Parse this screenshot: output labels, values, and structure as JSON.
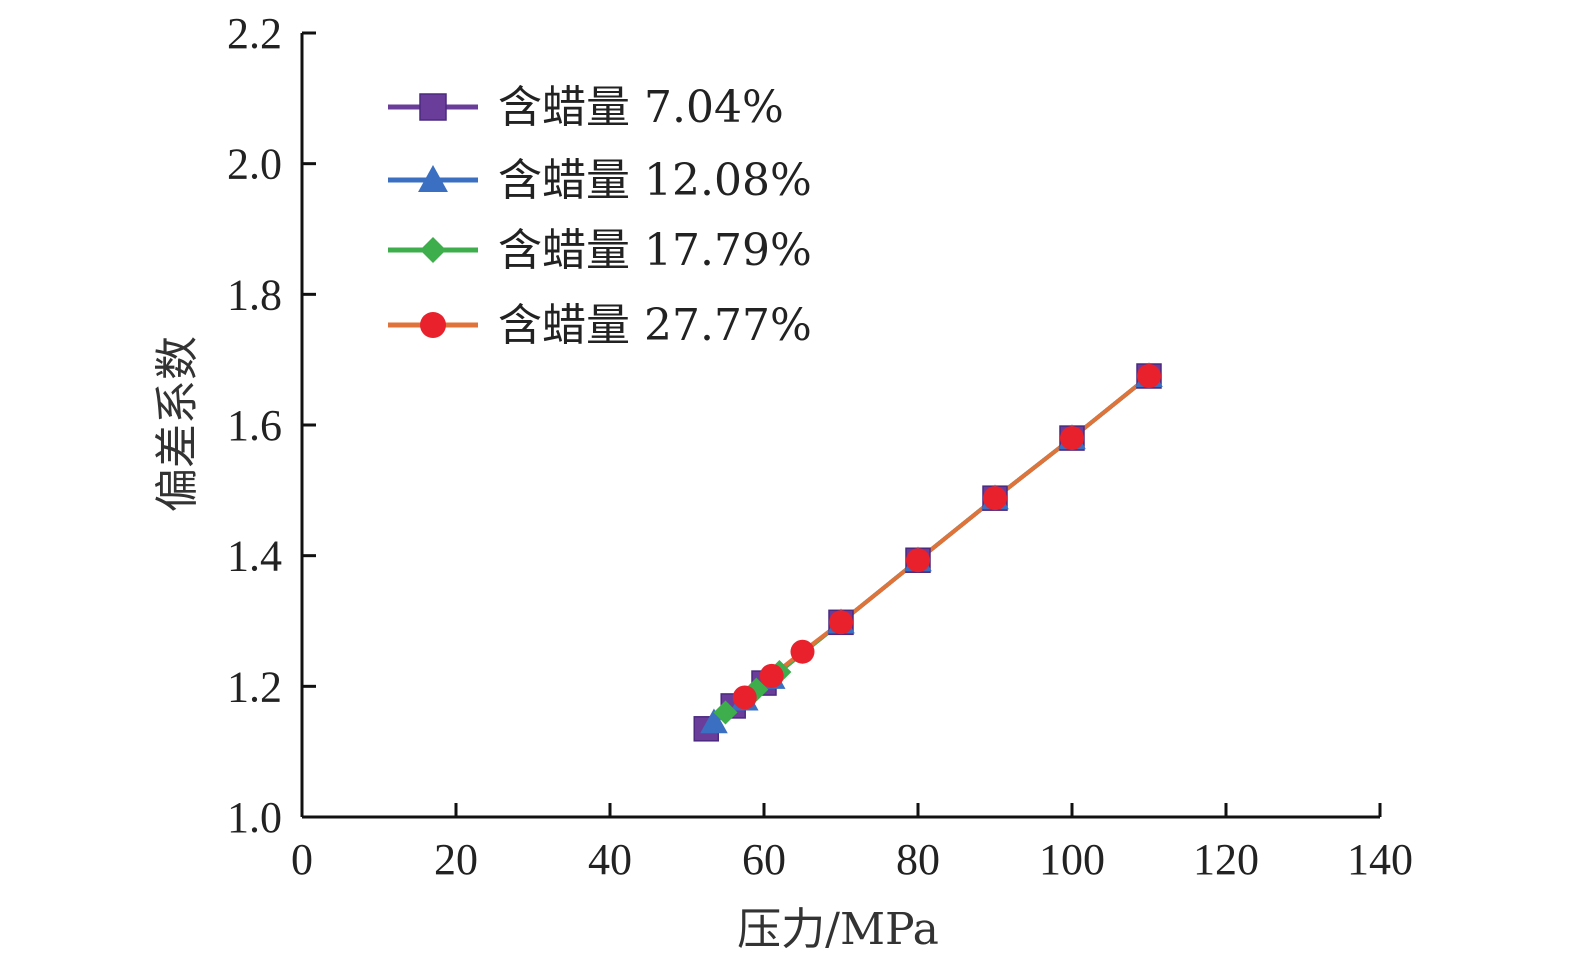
{
  "chart_data": {
    "type": "line",
    "xlabel": "压力/MPa",
    "ylabel": "偏差系数",
    "xlim": [
      0,
      140
    ],
    "ylim": [
      1.0,
      2.2
    ],
    "xticks": [
      "0",
      "20",
      "40",
      "60",
      "80",
      "100",
      "120",
      "140"
    ],
    "yticks": [
      "1.0",
      "1.2",
      "1.4",
      "1.6",
      "1.8",
      "2.0",
      "2.2"
    ],
    "grid": false,
    "legend_position": "top-left",
    "series": [
      {
        "name": "含蜡量 7.04%",
        "color": "#6a3d9a",
        "marker": "square",
        "x": [
          52.5,
          56,
          60,
          70,
          80,
          90,
          100,
          110
        ],
        "y": [
          1.135,
          1.17,
          1.205,
          1.298,
          1.393,
          1.488,
          1.58,
          1.675
        ]
      },
      {
        "name": "含蜡量 12.08%",
        "color": "#3a6fc1",
        "marker": "triangle",
        "x": [
          53.5,
          57.5,
          61,
          70,
          80,
          90,
          100,
          110
        ],
        "y": [
          1.145,
          1.18,
          1.213,
          1.298,
          1.393,
          1.488,
          1.58,
          1.675
        ]
      },
      {
        "name": "含蜡量 17.79%",
        "color": "#3dae4b",
        "marker": "diamond",
        "x": [
          55,
          59,
          62,
          70,
          80,
          90,
          100,
          110
        ],
        "y": [
          1.16,
          1.195,
          1.222,
          1.298,
          1.393,
          1.488,
          1.58,
          1.675
        ]
      },
      {
        "name": "含蜡量 27.77%",
        "color": "#e0733a",
        "markerColor": "#e8212c",
        "marker": "circle",
        "x": [
          57.5,
          61,
          65,
          70,
          80,
          90,
          100,
          110
        ],
        "y": [
          1.183,
          1.216,
          1.253,
          1.298,
          1.393,
          1.488,
          1.58,
          1.675
        ]
      }
    ]
  }
}
